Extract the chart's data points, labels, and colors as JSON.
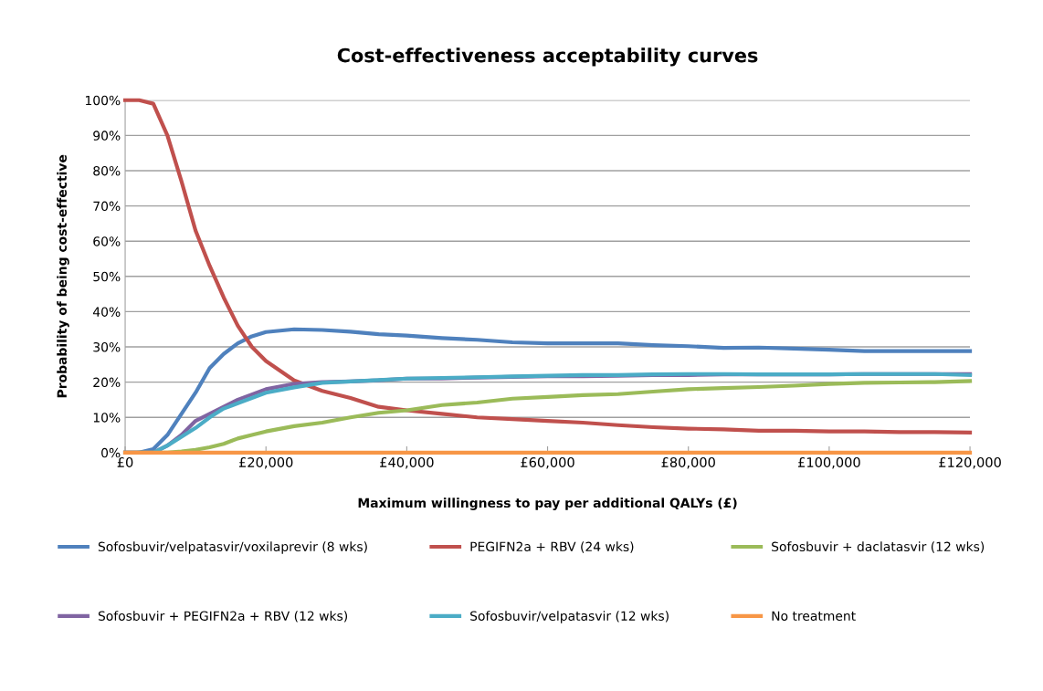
{
  "chart_data": {
    "type": "line",
    "title": "Cost-effectiveness acceptability curves",
    "xlabel": "Maximum willingness to pay per additional QALYs (£)",
    "ylabel": "Probability of being cost-effective",
    "x": [
      0,
      2000,
      4000,
      6000,
      8000,
      10000,
      12000,
      14000,
      16000,
      18000,
      20000,
      24000,
      28000,
      32000,
      36000,
      40000,
      45000,
      50000,
      55000,
      60000,
      65000,
      70000,
      75000,
      80000,
      85000,
      90000,
      95000,
      100000,
      105000,
      110000,
      115000,
      120000
    ],
    "series": [
      {
        "name": "Sofosbuvir/velpatasvir/voxilaprevir (8 wks)",
        "color": "#4f81bd",
        "values": [
          0,
          0,
          1,
          5,
          11,
          17,
          24,
          28,
          31,
          33,
          34.2,
          35,
          34.8,
          34.3,
          33.6,
          33.2,
          32.5,
          32,
          31.3,
          31,
          31,
          31,
          30.5,
          30.2,
          29.7,
          29.8,
          29.5,
          29.2,
          28.8,
          28.8,
          28.8,
          28.8
        ]
      },
      {
        "name": "PEGIFN2a + RBV (24 wks)",
        "color": "#c0504d",
        "values": [
          100,
          100,
          99,
          90,
          77,
          63,
          53,
          44,
          36,
          30,
          26,
          20.5,
          17.5,
          15.5,
          13,
          12,
          11,
          10,
          9.5,
          9,
          8.5,
          7.8,
          7.2,
          6.8,
          6.6,
          6.2,
          6.2,
          6,
          6,
          5.8,
          5.8,
          5.7
        ]
      },
      {
        "name": "Sofosbuvir + daclatasvir (12 wks)",
        "color": "#9bbb59",
        "values": [
          0,
          0,
          0,
          0,
          0.3,
          0.8,
          1.5,
          2.5,
          4,
          5,
          6,
          7.5,
          8.5,
          10,
          11.3,
          12,
          13.5,
          14.2,
          15.3,
          15.8,
          16.3,
          16.6,
          17.3,
          18,
          18.3,
          18.6,
          19,
          19.5,
          19.8,
          19.9,
          20,
          20.3
        ]
      },
      {
        "name": "Sofosbuvir + PEGIFN2a + RBV (12 wks)",
        "color": "#8064a2",
        "values": [
          0,
          0,
          0,
          2,
          5,
          9,
          11,
          13,
          15,
          16.5,
          18,
          19.5,
          20,
          20.2,
          20.5,
          21,
          21,
          21.3,
          21.5,
          21.7,
          21.7,
          21.8,
          22,
          22,
          22.2,
          22.2,
          22.2,
          22.2,
          22.3,
          22.3,
          22.3,
          22.3
        ]
      },
      {
        "name": "Sofosbuvir/velpatasvir (12 wks)",
        "color": "#4bacc6",
        "values": [
          null,
          0,
          0,
          2,
          4.5,
          7,
          10,
          12.5,
          14,
          15.5,
          17,
          18.5,
          19.8,
          20.2,
          20.6,
          21,
          21.2,
          21.4,
          21.6,
          21.8,
          22,
          22,
          22.2,
          22.3,
          22.3,
          22.2,
          22.2,
          22.2,
          22.3,
          22.3,
          22.3,
          22
        ]
      },
      {
        "name": "No treatment",
        "color": "#f79646",
        "values": [
          0,
          0,
          0,
          0,
          0,
          0,
          0,
          0,
          0,
          0,
          0,
          0,
          0,
          0,
          0,
          0,
          0,
          0,
          0,
          0,
          0,
          0,
          0,
          0,
          0,
          0,
          0,
          0,
          0,
          0,
          0,
          0
        ]
      }
    ],
    "xlim": [
      0,
      120000
    ],
    "xticks": [
      {
        "value": 0,
        "label": "£0"
      },
      {
        "value": 20000,
        "label": "£20,000"
      },
      {
        "value": 40000,
        "label": "£40,000"
      },
      {
        "value": 60000,
        "label": "£60,000"
      },
      {
        "value": 80000,
        "label": "£80,000"
      },
      {
        "value": 100000,
        "label": "£100,000"
      },
      {
        "value": 120000,
        "label": "£120,000"
      }
    ],
    "ylim": [
      0,
      100
    ],
    "yticks": [
      {
        "value": 0,
        "label": "0%"
      },
      {
        "value": 10,
        "label": "10%"
      },
      {
        "value": 20,
        "label": "20%"
      },
      {
        "value": 30,
        "label": "30%"
      },
      {
        "value": 40,
        "label": "40%"
      },
      {
        "value": 50,
        "label": "50%"
      },
      {
        "value": 60,
        "label": "60%"
      },
      {
        "value": 70,
        "label": "70%"
      },
      {
        "value": 80,
        "label": "80%"
      },
      {
        "value": 90,
        "label": "90%"
      },
      {
        "value": 100,
        "label": "100%"
      }
    ],
    "grid": "y",
    "legend": "bottom",
    "marker": "none",
    "line_style": "solid"
  }
}
